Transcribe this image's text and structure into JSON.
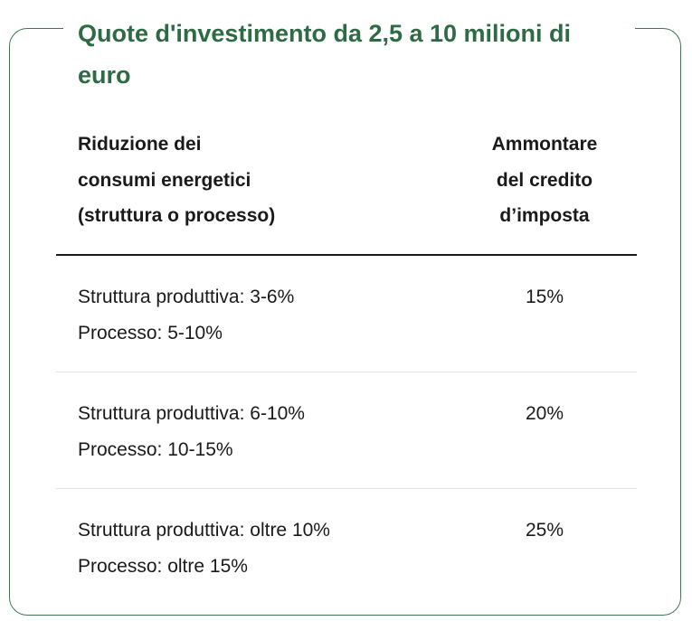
{
  "title": "Quote d'investimento da 2,5 a 10 milioni di euro",
  "header": {
    "left_lines": [
      "Riduzione dei",
      "consumi energetici",
      "(struttura o processo)"
    ],
    "right_lines": [
      "Ammontare",
      "del credito",
      "d’imposta"
    ]
  },
  "rows": [
    {
      "struttura": "Struttura produttiva: 3-6%",
      "processo": "Processo: 5-10%",
      "credito": "15%"
    },
    {
      "struttura": "Struttura produttiva: 6-10%",
      "processo": "Processo: 10-15%",
      "credito": "20%"
    },
    {
      "struttura": "Struttura produttiva: oltre 10%",
      "processo": "Processo: oltre 15%",
      "credito": "25%"
    }
  ],
  "colors": {
    "accent": "#2e6b45",
    "border": "#3d7a52",
    "text": "#1a1a1a",
    "row_divider": "#e2e2e2"
  }
}
